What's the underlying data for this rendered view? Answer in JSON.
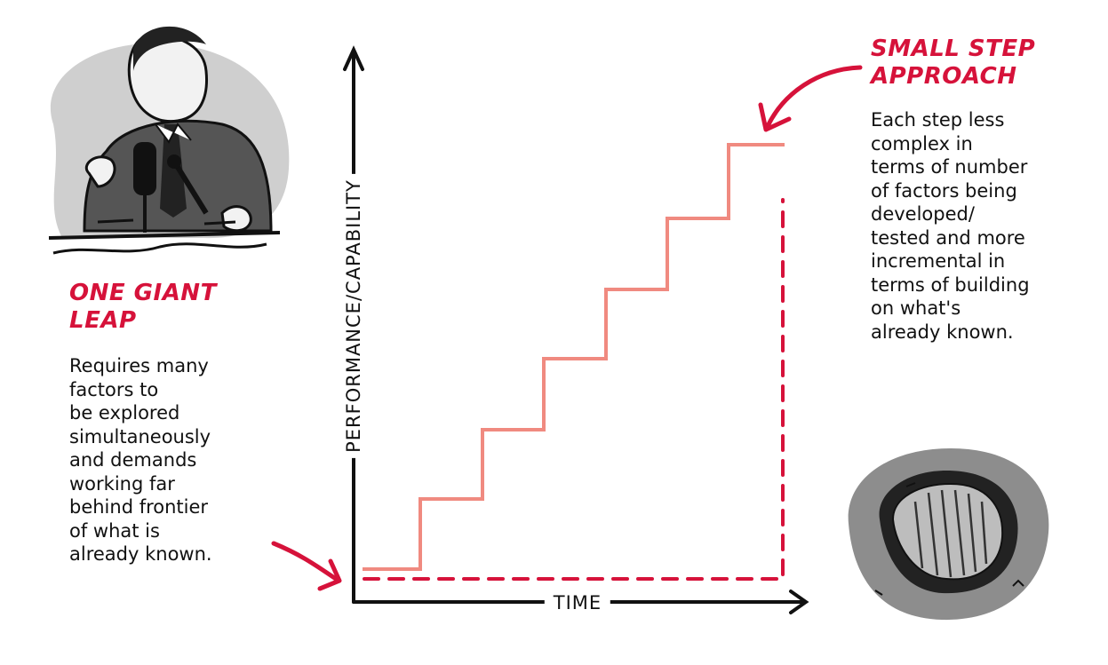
{
  "left": {
    "heading_lines": [
      "ONE GIANT",
      "LEAP"
    ],
    "body_lines": [
      "Requires many",
      "factors to",
      "be explored",
      "simultaneously",
      "and demands",
      "working far",
      "behind frontier",
      "of what is",
      "already known."
    ]
  },
  "right": {
    "heading_lines": [
      "SMALL STEP",
      "APPROACH"
    ],
    "body_lines": [
      "Each step less",
      "complex in",
      "terms of number",
      "of factors being",
      "developed/",
      "tested and more",
      "incremental in",
      "terms of building",
      "on what's",
      "already known."
    ]
  },
  "axes": {
    "y_label": "PERFORMANCE/CAPABILITY",
    "x_label": "TIME"
  },
  "colors": {
    "accent": "#d6123a",
    "steps": "#f08a80",
    "ink": "#111111"
  },
  "illustrations": [
    "speaker-at-microphones-icon",
    "footprint-icon"
  ]
}
